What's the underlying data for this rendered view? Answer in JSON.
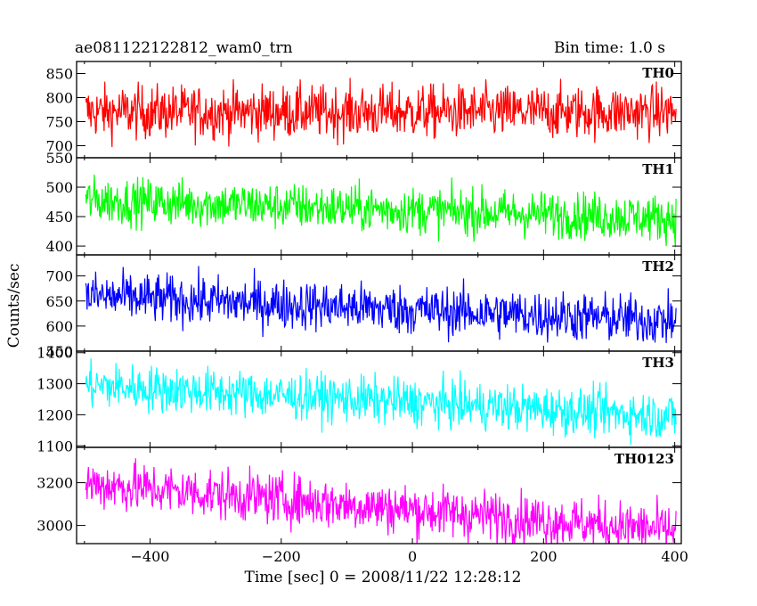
{
  "header": {
    "object_name": "ae081122122812_wam0_trn",
    "bin_time": "Bin time: 1.0 s"
  },
  "chart_data": {
    "type": "line",
    "xlabel": "Time [sec] 0 = 2008/11/22 12:28:12",
    "ylabel": "Counts/sec",
    "x_ticks": [
      -400,
      -200,
      0,
      200,
      400
    ],
    "xlim": [
      -512,
      410
    ],
    "x_range": [
      -498,
      402
    ],
    "grid": false,
    "panels": [
      {
        "name": "TH0",
        "color": "#ff0000",
        "ylim": [
          675,
          875
        ],
        "yticks": [
          700,
          750,
          800,
          850
        ],
        "trend": [
          [
            -498,
            770
          ],
          [
            402,
            770
          ]
        ],
        "noise": 28
      },
      {
        "name": "TH1",
        "color": "#00ff00",
        "ylim": [
          385,
          550
        ],
        "yticks": [
          400,
          450,
          500,
          550
        ],
        "trend": [
          [
            -498,
            478
          ],
          [
            402,
            447
          ]
        ],
        "noise": 20
      },
      {
        "name": "TH2",
        "color": "#0000ff",
        "ylim": [
          550,
          742
        ],
        "yticks": [
          550,
          600,
          650,
          700
        ],
        "trend": [
          [
            -498,
            660
          ],
          [
            402,
            610
          ]
        ],
        "noise": 25
      },
      {
        "name": "TH3",
        "color": "#00ffff",
        "ylim": [
          1095,
          1405
        ],
        "yticks": [
          1100,
          1200,
          1300,
          1400
        ],
        "trend": [
          [
            -498,
            1295
          ],
          [
            402,
            1195
          ]
        ],
        "noise": 38
      },
      {
        "name": "TH0123",
        "color": "#ff00ff",
        "ylim": [
          2915,
          3365
        ],
        "yticks": [
          3000,
          3200
        ],
        "trend": [
          [
            -498,
            3195
          ],
          [
            402,
            2975
          ]
        ],
        "noise": 60
      }
    ]
  }
}
